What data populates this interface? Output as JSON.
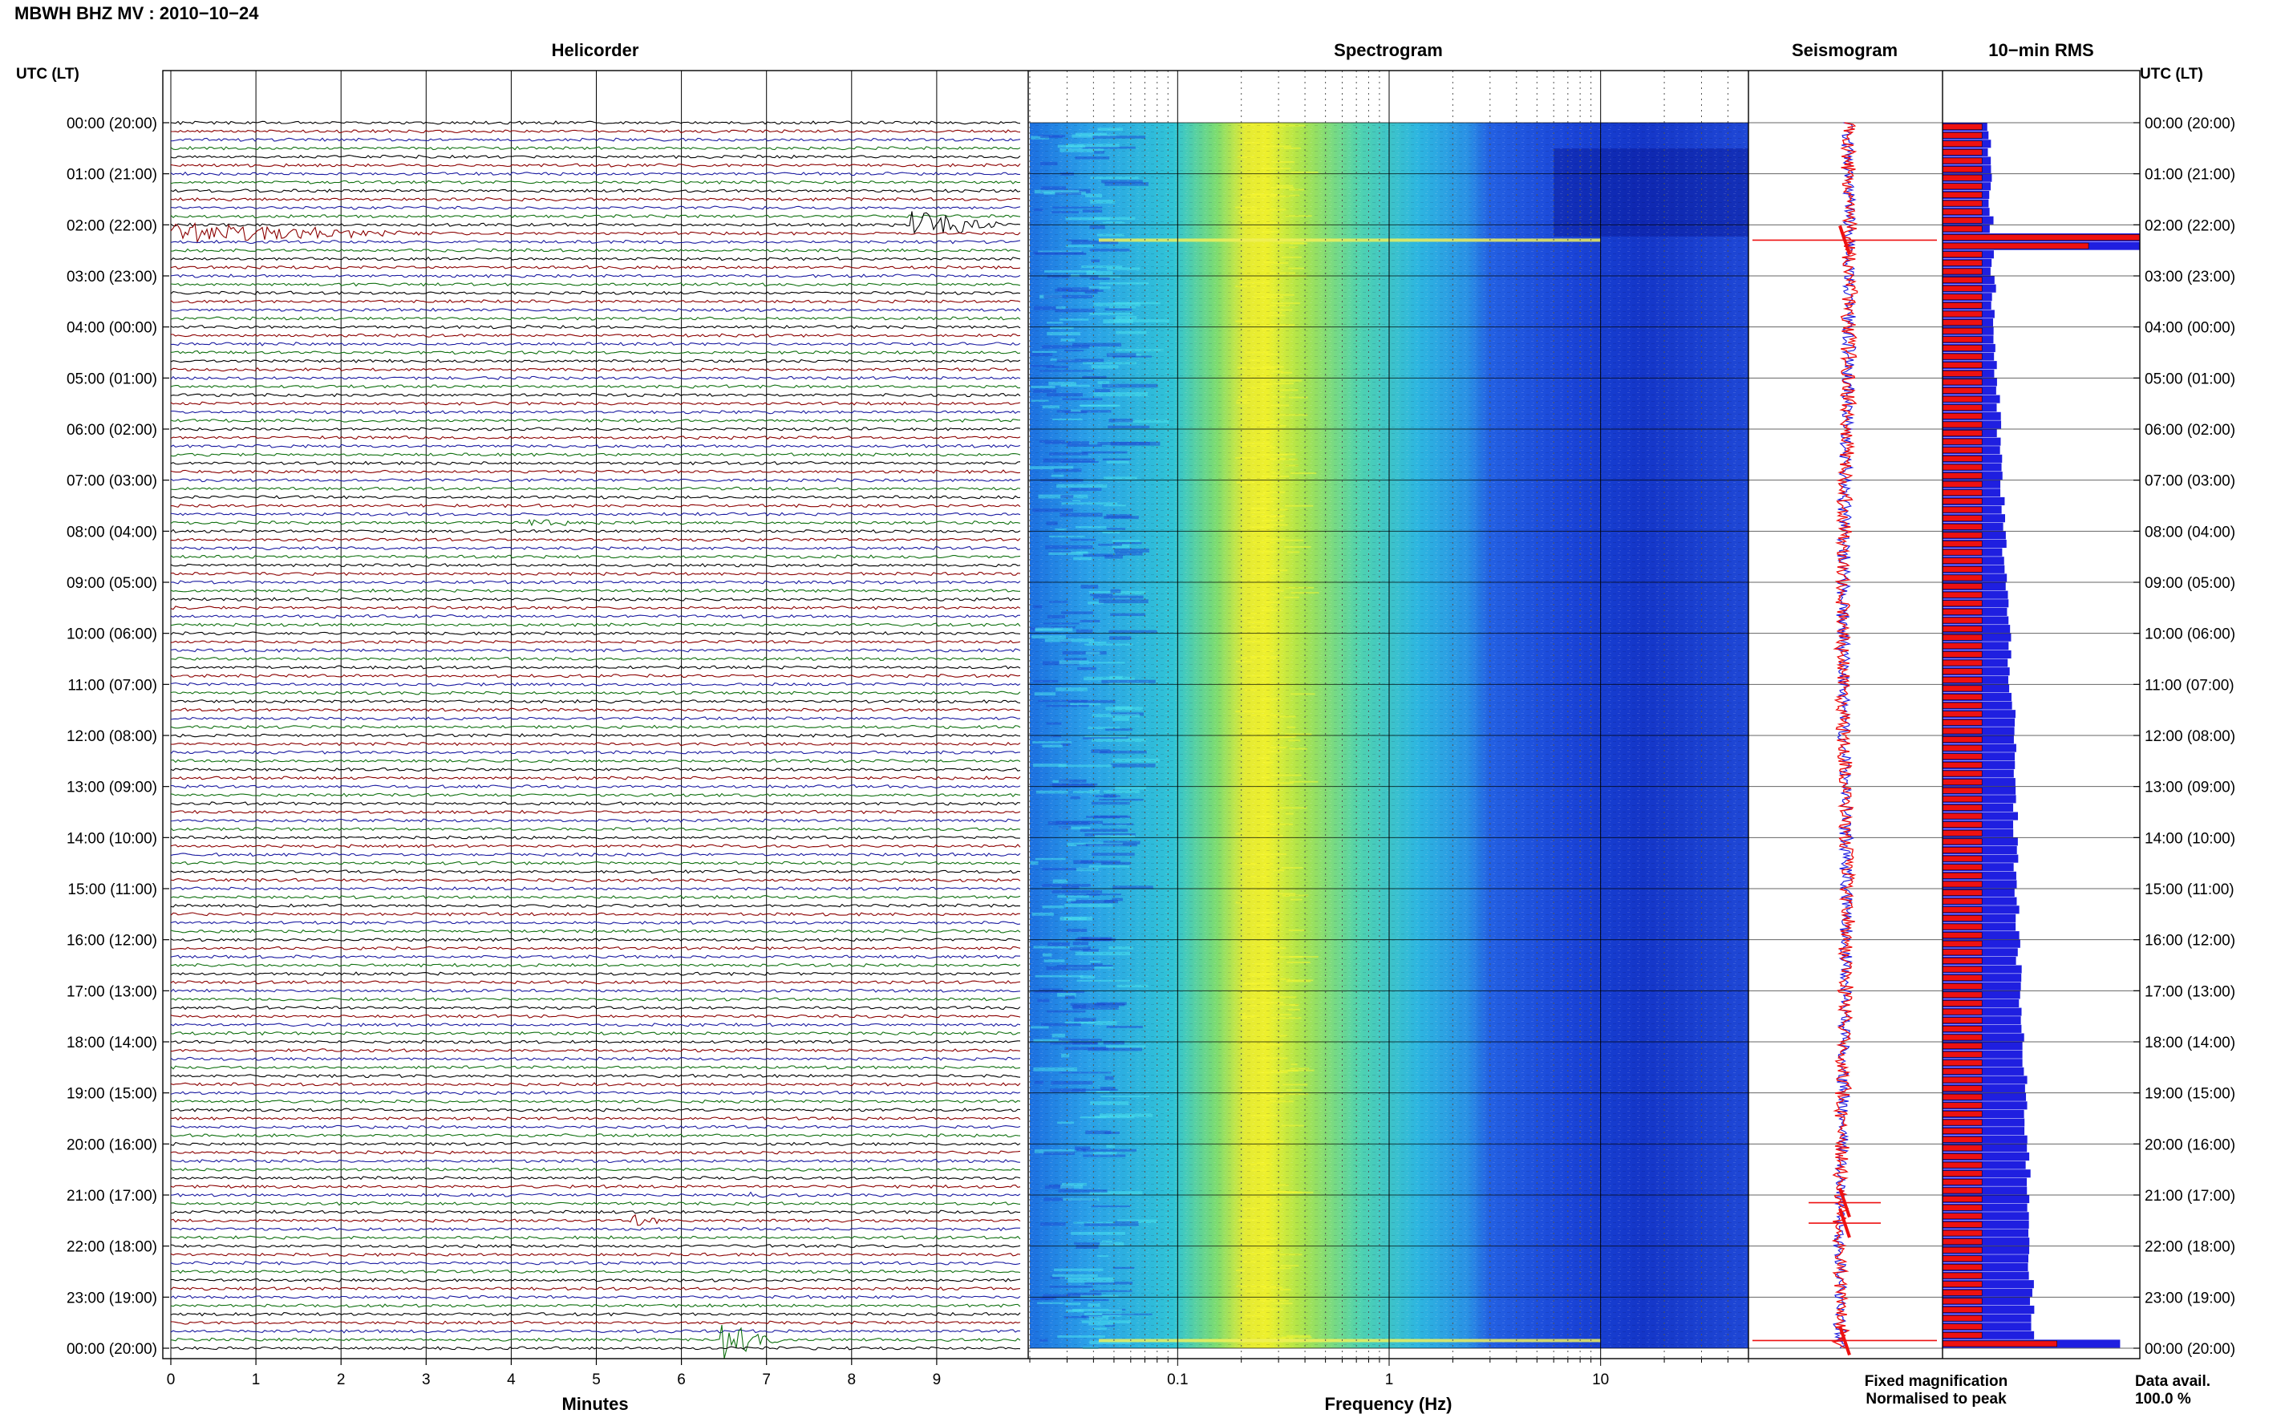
{
  "header": {
    "title": "MBWH BHZ MV : 2010−10−24",
    "left_axis_title": "UTC (LT)",
    "right_axis_title": "UTC (LT)"
  },
  "panels": {
    "helicorder_title": "Helicorder",
    "spectrogram_title": "Spectrogram",
    "seismogram_title": "Seismogram",
    "rms_title": "10−min RMS"
  },
  "legend": {
    "fixed": "Fixed magnification",
    "normalised": "Normalised to peak",
    "fixed_color": "#1f1fe0",
    "normalised_color": "#ee1111",
    "data_avail_label": "Data avail.",
    "data_avail_value": "100.0 %"
  },
  "chart_data": [
    {
      "type": "line",
      "name": "helicorder",
      "title": "Helicorder",
      "xlabel": "Minutes",
      "x_ticks": [
        "0",
        "1",
        "2",
        "3",
        "4",
        "5",
        "6",
        "7",
        "8",
        "9"
      ],
      "xlim": [
        0,
        10
      ],
      "y_ticks": [
        "00:00 (20:00)",
        "01:00 (21:00)",
        "02:00 (22:00)",
        "03:00 (23:00)",
        "04:00 (00:00)",
        "05:00 (01:00)",
        "06:00 (02:00)",
        "07:00 (03:00)",
        "08:00 (04:00)",
        "09:00 (05:00)",
        "10:00 (06:00)",
        "11:00 (07:00)",
        "12:00 (08:00)",
        "13:00 (09:00)",
        "14:00 (10:00)",
        "15:00 (11:00)",
        "16:00 (12:00)",
        "17:00 (13:00)",
        "18:00 (14:00)",
        "19:00 (15:00)",
        "20:00 (16:00)",
        "21:00 (17:00)",
        "22:00 (18:00)",
        "23:00 (19:00)",
        "00:00 (20:00)"
      ],
      "traces_per_hour": 6,
      "trace_colors": [
        "#000000",
        "#8b0000",
        "#1a1aa0",
        "#107010"
      ],
      "events": [
        {
          "hour": 2.2,
          "minute_start": 0.0,
          "minute_end": 3.0,
          "amplitude": 10
        },
        {
          "hour": 2.0,
          "minute_start": 8.7,
          "minute_end": 9.9,
          "amplitude": 14
        },
        {
          "hour": 7.9,
          "minute_start": 4.2,
          "minute_end": 4.9,
          "amplitude": 3
        },
        {
          "hour": 21.0,
          "minute_start": 6.8,
          "minute_end": 7.0,
          "amplitude": 5
        },
        {
          "hour": 21.5,
          "minute_start": 5.4,
          "minute_end": 5.9,
          "amplitude": 7
        },
        {
          "hour": 23.9,
          "minute_start": 6.45,
          "minute_end": 7.2,
          "amplitude": 22
        }
      ]
    },
    {
      "type": "heatmap",
      "name": "spectrogram",
      "title": "Spectrogram",
      "xlabel": "Frequency (Hz)",
      "x_scale": "log",
      "xlim": [
        0.02,
        50
      ],
      "x_tick_labels": [
        "0.1",
        "1",
        "10"
      ],
      "x_tick_values": [
        0.1,
        1,
        10
      ],
      "colormap": [
        "#0b1fbf",
        "#1f5fe8",
        "#19a8e8",
        "#36d6c8",
        "#a8e84a",
        "#f0f030"
      ],
      "peak_frequency_hz": 0.25,
      "events_hours": [
        2.3,
        23.85
      ]
    },
    {
      "type": "line",
      "name": "seismogram",
      "title": "Seismogram",
      "series": [
        {
          "name": "Fixed magnification",
          "color": "#1f1fe0"
        },
        {
          "name": "Normalised to peak",
          "color": "#ee1111"
        }
      ],
      "spikes_hours": [
        2.3,
        21.15,
        21.55,
        23.85
      ]
    },
    {
      "type": "bar",
      "name": "rms",
      "title": "10−min RMS",
      "orientation": "horizontal",
      "bins_per_hour": 6,
      "series": [
        {
          "name": "Fixed magnification",
          "color": "#1f1fe0"
        },
        {
          "name": "Normalised to peak",
          "color": "#ee1111"
        }
      ],
      "fixed_profile": [
        [
          0,
          0.24
        ],
        [
          4,
          0.26
        ],
        [
          8,
          0.31
        ],
        [
          12,
          0.36
        ],
        [
          16,
          0.38
        ],
        [
          20,
          0.43
        ],
        [
          23,
          0.45
        ],
        [
          24,
          0.46
        ]
      ],
      "normalised_profile": [
        [
          0,
          0.2
        ],
        [
          24,
          0.2
        ]
      ],
      "peaks": [
        {
          "hour": 2.3,
          "fixed": 1.0,
          "normalised": 1.0
        },
        {
          "hour": 2.4,
          "fixed": 1.0,
          "normalised": 0.74
        },
        {
          "hour": 23.85,
          "fixed": 0.9,
          "normalised": 0.58
        }
      ]
    }
  ]
}
